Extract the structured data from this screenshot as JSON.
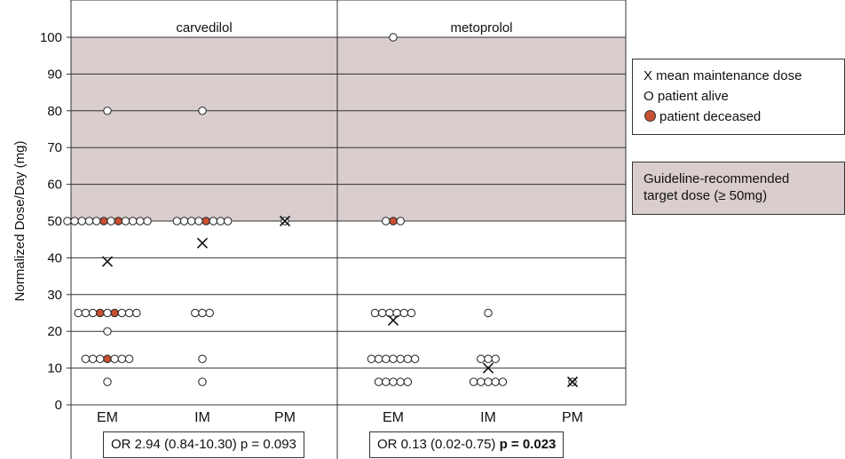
{
  "chart_data": {
    "type": "scatter",
    "ylabel": "Normalized Dose/Day (mg)",
    "ylim": [
      0,
      100
    ],
    "yticks": [
      0,
      10,
      20,
      30,
      40,
      50,
      60,
      70,
      80,
      90,
      100
    ],
    "grid": true,
    "shaded_region": {
      "from": 50,
      "to": 100,
      "label_line1": "Guideline-recommended",
      "label_line2": "target dose (≥ 50mg)"
    },
    "legend": {
      "placement": "right",
      "mean_label": "X mean maintenance dose",
      "alive_label": "O patient alive",
      "deceased_label": "patient deceased"
    },
    "panels": [
      {
        "title": "carvedilol",
        "categories": [
          "EM",
          "IM",
          "PM"
        ],
        "or_text": "OR 2.94 (0.84-10.30) p = 0.093",
        "or_bold": "",
        "groups": [
          {
            "category": "EM",
            "mean": 39,
            "points": [
              {
                "y": 80,
                "alive": 1,
                "deceased": 0
              },
              {
                "y": 50,
                "alive": 10,
                "deceased": 2
              },
              {
                "y": 25,
                "alive": 7,
                "deceased": 2
              },
              {
                "y": 20,
                "alive": 1,
                "deceased": 0
              },
              {
                "y": 12.5,
                "alive": 6,
                "deceased": 1
              },
              {
                "y": 6.25,
                "alive": 1,
                "deceased": 0
              }
            ]
          },
          {
            "category": "IM",
            "mean": 44,
            "points": [
              {
                "y": 80,
                "alive": 1,
                "deceased": 0
              },
              {
                "y": 50,
                "alive": 7,
                "deceased": 1
              },
              {
                "y": 25,
                "alive": 3,
                "deceased": 0
              },
              {
                "y": 12.5,
                "alive": 1,
                "deceased": 0
              },
              {
                "y": 6.25,
                "alive": 1,
                "deceased": 0
              }
            ]
          },
          {
            "category": "PM",
            "mean": 50,
            "points": [
              {
                "y": 50,
                "alive": 1,
                "deceased": 0
              }
            ]
          }
        ]
      },
      {
        "title": "metoprolol",
        "categories": [
          "EM",
          "IM",
          "PM"
        ],
        "or_text": "OR 0.13 (0.02-0.75) ",
        "or_bold": "p = 0.023",
        "groups": [
          {
            "category": "EM",
            "mean": 23,
            "points": [
              {
                "y": 100,
                "alive": 1,
                "deceased": 0
              },
              {
                "y": 50,
                "alive": 2,
                "deceased": 1
              },
              {
                "y": 25,
                "alive": 6,
                "deceased": 0
              },
              {
                "y": 12.5,
                "alive": 7,
                "deceased": 0
              },
              {
                "y": 6.25,
                "alive": 5,
                "deceased": 0
              }
            ]
          },
          {
            "category": "IM",
            "mean": 10,
            "points": [
              {
                "y": 25,
                "alive": 1,
                "deceased": 0
              },
              {
                "y": 12.5,
                "alive": 3,
                "deceased": 0
              },
              {
                "y": 6.25,
                "alive": 5,
                "deceased": 0
              }
            ]
          },
          {
            "category": "PM",
            "mean": 6.25,
            "points": [
              {
                "y": 6.25,
                "alive": 1,
                "deceased": 0
              }
            ]
          }
        ]
      }
    ]
  }
}
